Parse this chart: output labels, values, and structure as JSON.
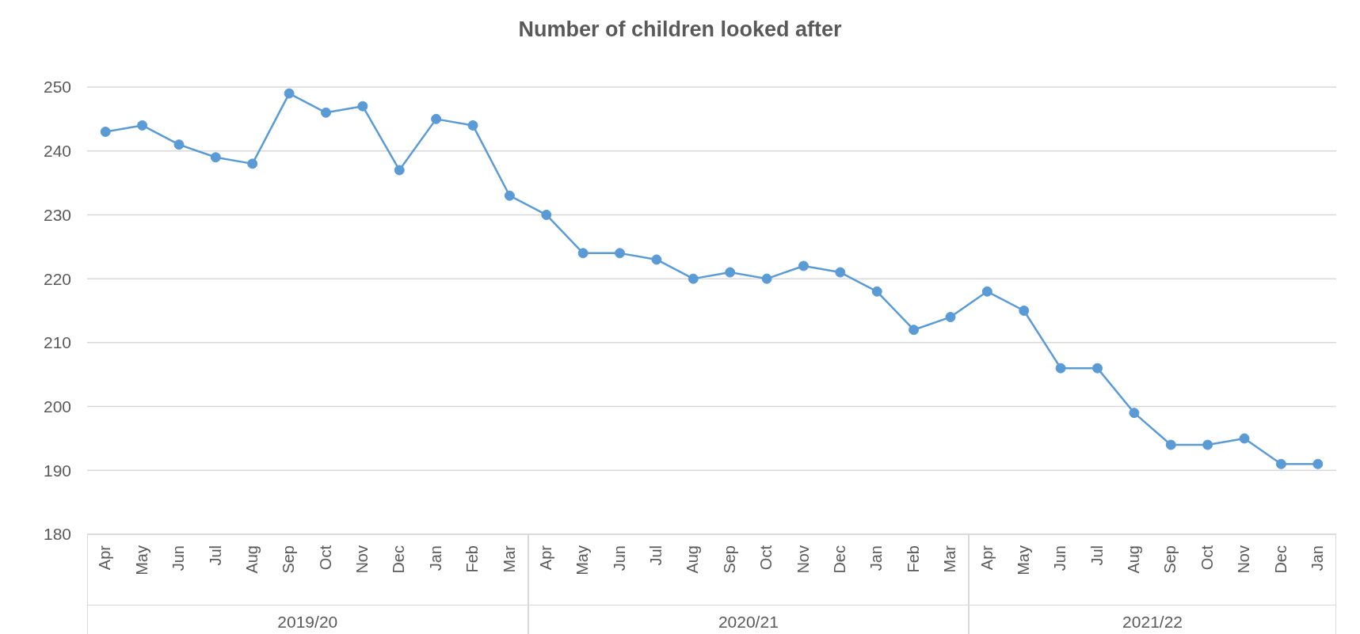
{
  "chart_data": {
    "type": "line",
    "title": "Number of children looked after",
    "categories": [
      "Apr",
      "May",
      "Jun",
      "Jul",
      "Aug",
      "Sep",
      "Oct",
      "Nov",
      "Dec",
      "Jan",
      "Feb",
      "Mar",
      "Apr",
      "May",
      "Jun",
      "Jul",
      "Aug",
      "Sep",
      "Oct",
      "Nov",
      "Dec",
      "Jan",
      "Feb",
      "Mar",
      "Apr",
      "May",
      "Jun",
      "Jul",
      "Aug",
      "Sep",
      "Oct",
      "Nov",
      "Dec",
      "Jan"
    ],
    "series": [
      {
        "color": "#5b9bd5",
        "values": [
          243,
          244,
          241,
          239,
          238,
          249,
          246,
          247,
          237,
          245,
          244,
          233,
          230,
          224,
          224,
          223,
          220,
          221,
          220,
          222,
          221,
          218,
          212,
          214,
          218,
          215,
          206,
          206,
          199,
          194,
          194,
          195,
          191,
          191
        ]
      }
    ],
    "annotations": [
      "2019/20",
      "2020/21",
      "2021/22"
    ],
    "ylim": [
      180,
      250
    ],
    "yticks": [
      180,
      190,
      200,
      210,
      220,
      230,
      240,
      250
    ],
    "grid": "y",
    "marker": "circle",
    "line_style": "solid"
  }
}
